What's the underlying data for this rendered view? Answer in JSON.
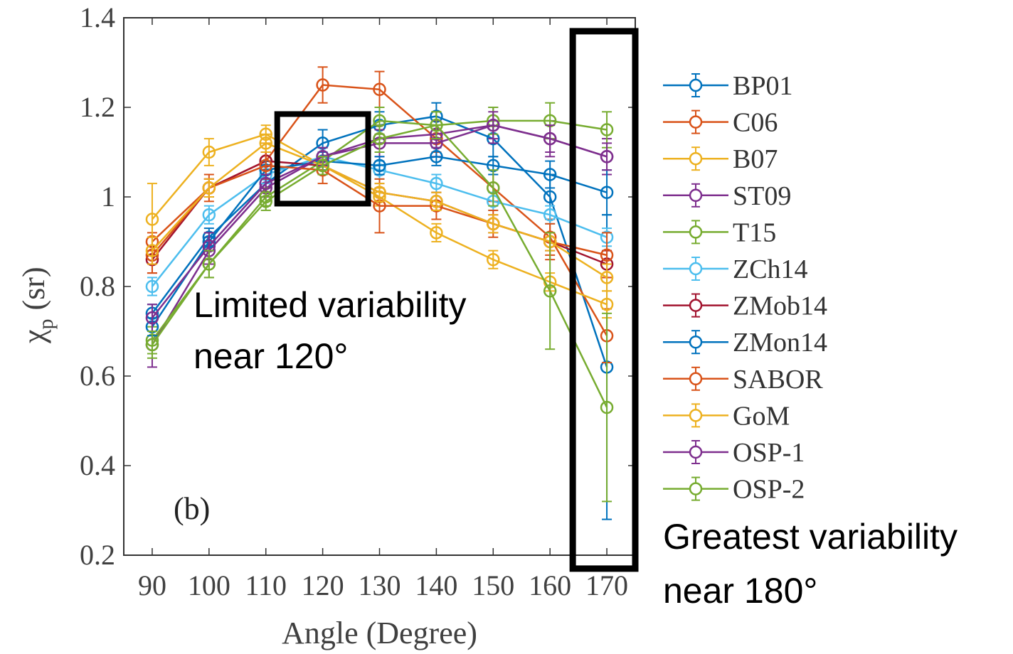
{
  "chart_data": {
    "type": "line",
    "x": [
      90,
      100,
      110,
      120,
      130,
      140,
      150,
      160,
      170
    ],
    "xlabel": "Angle (Degree)",
    "ylabel": "χ",
    "ylabel_sub": "p",
    "ylabel_unit": "(sr)",
    "ylim": [
      0.2,
      1.4
    ],
    "yticks": [
      0.2,
      0.4,
      0.6,
      0.8,
      1.0,
      1.2,
      1.4
    ],
    "ytick_labels": [
      "0.2",
      "0.4",
      "0.6",
      "0.8",
      "1",
      "1.2",
      "1.4"
    ],
    "xtick_labels": [
      "90",
      "100",
      "110",
      "120",
      "130",
      "140",
      "150",
      "160",
      "170"
    ],
    "panel_label": "(b)",
    "legend_position": "right",
    "series": [
      {
        "name": "BP01",
        "color": "#0072BD",
        "values": [
          0.74,
          0.91,
          1.03,
          1.12,
          1.16,
          1.18,
          1.13,
          1.0,
          0.62
        ],
        "errors": [
          0.02,
          0.02,
          0.02,
          0.03,
          0.03,
          0.03,
          0.04,
          0.05,
          0.34
        ]
      },
      {
        "name": "C06",
        "color": "#D95319",
        "values": [
          0.9,
          1.02,
          1.08,
          1.25,
          1.24,
          1.13,
          1.02,
          0.91,
          0.69
        ],
        "errors": [
          0.02,
          0.02,
          0.04,
          0.04,
          0.04,
          0.03,
          0.03,
          0.04,
          0.06
        ]
      },
      {
        "name": "B07",
        "color": "#EDB120",
        "values": [
          0.95,
          1.1,
          1.14,
          1.07,
          1.0,
          0.92,
          0.86,
          0.81,
          0.76
        ],
        "errors": [
          0.08,
          0.03,
          0.02,
          0.02,
          0.02,
          0.02,
          0.02,
          0.02,
          0.03
        ]
      },
      {
        "name": "ST09",
        "color": "#7E2F8E",
        "values": [
          0.67,
          0.88,
          1.02,
          1.09,
          1.12,
          1.12,
          1.16,
          1.13,
          1.09
        ],
        "errors": [
          0.05,
          0.03,
          0.02,
          0.02,
          0.03,
          0.03,
          0.04,
          0.04,
          0.04
        ]
      },
      {
        "name": "T15",
        "color": "#77AC30",
        "values": [
          0.68,
          0.85,
          1.0,
          1.08,
          1.17,
          1.16,
          1.17,
          1.17,
          1.15
        ],
        "errors": [
          0.03,
          0.03,
          0.02,
          0.02,
          0.03,
          0.03,
          0.03,
          0.04,
          0.04
        ]
      },
      {
        "name": "ZCh14",
        "color": "#4DBEEE",
        "values": [
          0.8,
          0.96,
          1.05,
          1.09,
          1.06,
          1.03,
          0.99,
          0.96,
          0.91
        ],
        "errors": [
          0.02,
          0.02,
          0.02,
          0.02,
          0.02,
          0.02,
          0.02,
          0.02,
          0.02
        ]
      },
      {
        "name": "ZMob14",
        "color": "#A2142F",
        "values": [
          0.86,
          1.02,
          1.08,
          1.07,
          1.01,
          0.99,
          0.94,
          0.9,
          0.85
        ],
        "errors": [
          0.03,
          0.02,
          0.02,
          0.02,
          0.02,
          0.02,
          0.02,
          0.02,
          0.03
        ]
      },
      {
        "name": "ZMon14",
        "color": "#0072BD",
        "values": [
          0.71,
          0.9,
          1.06,
          1.08,
          1.07,
          1.09,
          1.07,
          1.05,
          1.01
        ],
        "errors": [
          0.02,
          0.02,
          0.02,
          0.02,
          0.02,
          0.02,
          0.02,
          0.03,
          0.05
        ]
      },
      {
        "name": "SABOR",
        "color": "#D95319",
        "values": [
          0.87,
          1.02,
          1.07,
          1.06,
          0.98,
          0.98,
          0.94,
          0.9,
          0.87
        ],
        "errors": [
          0.04,
          0.03,
          0.03,
          0.03,
          0.06,
          0.03,
          0.03,
          0.04,
          0.05
        ]
      },
      {
        "name": "GoM",
        "color": "#EDB120",
        "values": [
          0.88,
          1.02,
          1.12,
          1.07,
          1.01,
          0.99,
          0.94,
          0.9,
          0.82
        ],
        "errors": [
          0.03,
          0.02,
          0.02,
          0.02,
          0.02,
          0.02,
          0.02,
          0.02,
          0.03
        ]
      },
      {
        "name": "OSP-1",
        "color": "#7E2F8E",
        "values": [
          0.73,
          0.89,
          1.03,
          1.09,
          1.13,
          1.14,
          1.16,
          1.13,
          1.09
        ],
        "errors": [
          0.03,
          0.03,
          0.02,
          0.02,
          0.03,
          0.03,
          0.03,
          0.03,
          0.03
        ]
      },
      {
        "name": "OSP-2",
        "color": "#77AC30",
        "values": [
          0.67,
          0.85,
          0.99,
          1.07,
          1.13,
          1.16,
          1.02,
          0.79,
          0.53
        ],
        "errors": [
          0.03,
          0.03,
          0.02,
          0.02,
          0.03,
          0.03,
          0.04,
          0.13,
          0.21
        ]
      }
    ],
    "annotations": [
      {
        "text_lines": [
          "Limited variability",
          "near 120°"
        ],
        "box_x_range": [
          112,
          128
        ],
        "box_y_range": [
          0.985,
          1.185
        ]
      },
      {
        "text_lines": [
          "Greatest variability",
          "near 180°"
        ],
        "box_x_range": [
          164,
          175
        ],
        "box_y_range": [
          0.17,
          1.37
        ]
      }
    ]
  }
}
